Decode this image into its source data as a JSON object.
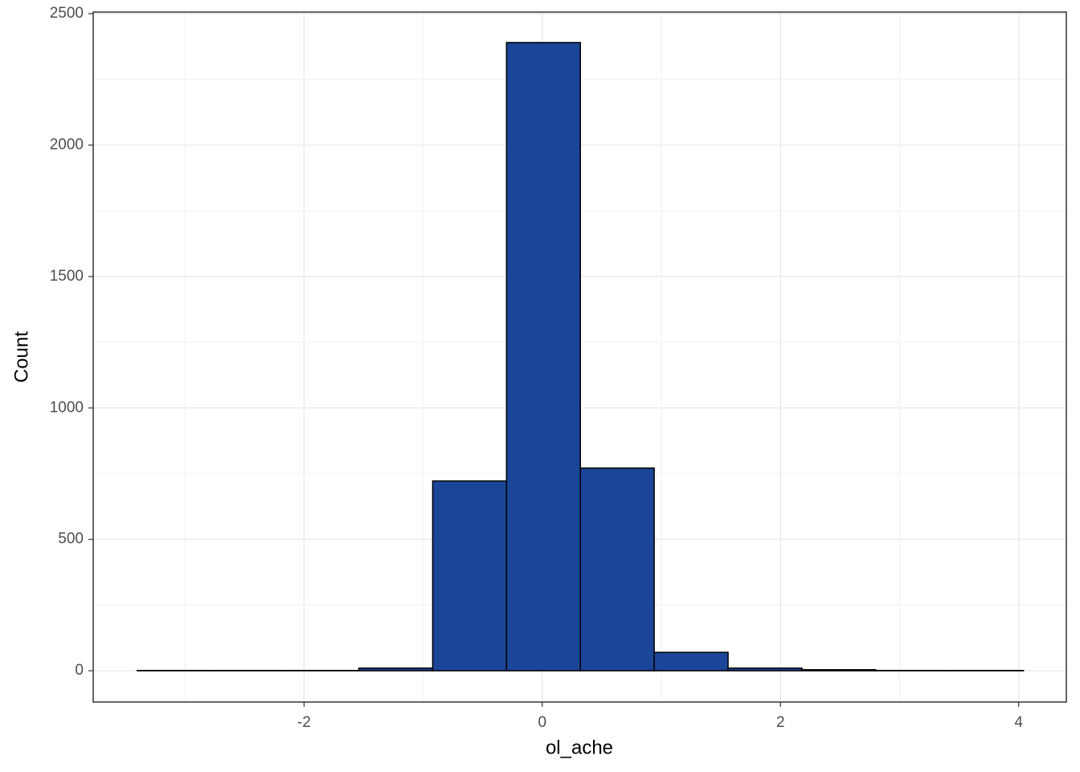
{
  "chart_data": {
    "type": "histogram",
    "x_label": "ol_ache",
    "y_label": "Count",
    "bins": [
      -3.4,
      -2.78,
      -2.16,
      -1.54,
      -0.92,
      -0.3,
      0.32,
      0.94,
      1.56,
      2.18,
      2.8,
      3.42,
      4.04
    ],
    "values": [
      1,
      1,
      1,
      10,
      722,
      2390,
      771,
      70,
      10,
      4,
      1,
      1
    ],
    "color": "#1a4599",
    "edge_color": "#000000",
    "xlim": [
      -3.77,
      4.4
    ],
    "ylim": [
      -119,
      2506
    ],
    "xticks": [
      -2,
      0,
      2,
      4
    ],
    "yticks": [
      0,
      500,
      1000,
      1500,
      2000,
      2500
    ],
    "grid": true,
    "minor_grid": true
  }
}
